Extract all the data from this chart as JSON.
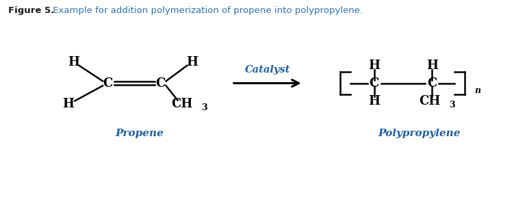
{
  "title_bold": "Figure 5.",
  "title_normal": " Example for addition polymerization of propene into polypropylene.",
  "title_color": "#2E74B5",
  "title_bold_color": "#1a1a1a",
  "background_color": "#ffffff",
  "propene_label": "Propene",
  "polypropylene_label": "Polypropylene",
  "catalyst_label": "Catalyst",
  "label_color": "#2060A0",
  "structure_color": "#000000",
  "figsize": [
    7.7,
    3.04
  ],
  "dpi": 100
}
